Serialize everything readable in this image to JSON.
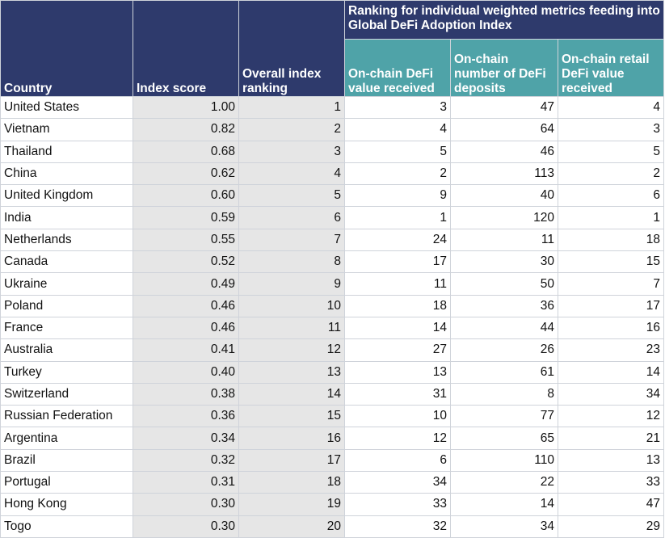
{
  "chart_data": {
    "type": "table",
    "headers": {
      "country": "Country",
      "index_score": "Index score",
      "overall_ranking": "Overall index ranking",
      "group": "Ranking for individual weighted metrics feeding into Global DeFi Adoption Index",
      "metric1": "On-chain DeFi value received",
      "metric2": "On-chain number of DeFi deposits",
      "metric3": "On-chain retail DeFi value received"
    },
    "rows": [
      [
        "United States",
        "1.00",
        "1",
        "3",
        "47",
        "4"
      ],
      [
        "Vietnam",
        "0.82",
        "2",
        "4",
        "64",
        "3"
      ],
      [
        "Thailand",
        "0.68",
        "3",
        "5",
        "46",
        "5"
      ],
      [
        "China",
        "0.62",
        "4",
        "2",
        "113",
        "2"
      ],
      [
        "United Kingdom",
        "0.60",
        "5",
        "9",
        "40",
        "6"
      ],
      [
        "India",
        "0.59",
        "6",
        "1",
        "120",
        "1"
      ],
      [
        "Netherlands",
        "0.55",
        "7",
        "24",
        "11",
        "18"
      ],
      [
        "Canada",
        "0.52",
        "8",
        "17",
        "30",
        "15"
      ],
      [
        "Ukraine",
        "0.49",
        "9",
        "11",
        "50",
        "7"
      ],
      [
        "Poland",
        "0.46",
        "10",
        "18",
        "36",
        "17"
      ],
      [
        "France",
        "0.46",
        "11",
        "14",
        "44",
        "16"
      ],
      [
        "Australia",
        "0.41",
        "12",
        "27",
        "26",
        "23"
      ],
      [
        "Turkey",
        "0.40",
        "13",
        "13",
        "61",
        "14"
      ],
      [
        "Switzerland",
        "0.38",
        "14",
        "31",
        "8",
        "34"
      ],
      [
        "Russian Federation",
        "0.36",
        "15",
        "10",
        "77",
        "12"
      ],
      [
        "Argentina",
        "0.34",
        "16",
        "12",
        "65",
        "21"
      ],
      [
        "Brazil",
        "0.32",
        "17",
        "6",
        "110",
        "13"
      ],
      [
        "Portugal",
        "0.31",
        "18",
        "34",
        "22",
        "33"
      ],
      [
        "Hong Kong",
        "0.30",
        "19",
        "33",
        "14",
        "47"
      ],
      [
        "Togo",
        "0.30",
        "20",
        "32",
        "34",
        "29"
      ]
    ],
    "colors": {
      "header_navy": "#2e3a6c",
      "header_teal": "#4fa3a8",
      "shaded_column": "#e6e6e6"
    }
  }
}
